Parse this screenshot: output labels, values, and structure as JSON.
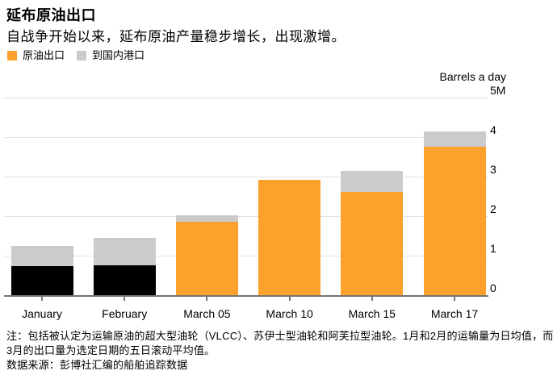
{
  "header": {
    "title": "延布原油出口",
    "subtitle": "自战争开始以来，延布原油产量稳步增长，出现激增。"
  },
  "legend": {
    "items": [
      {
        "label": "原油出口",
        "color_key": "orange"
      },
      {
        "label": "到国内港口",
        "color_key": "gray"
      }
    ]
  },
  "colors": {
    "orange": "#FBA12C",
    "gray": "#CBCBCB",
    "black": "#000000"
  },
  "chart_data": {
    "type": "bar",
    "stacked": true,
    "title": "延布原油出口",
    "unit_label": "Barrels a day",
    "ylabel": "",
    "xlabel": "",
    "ylim": [
      0,
      5
    ],
    "grid": "horizontal",
    "legend_position": "top-left",
    "y_ticks": [
      {
        "value": 5,
        "label": "5M"
      },
      {
        "value": 4,
        "label": "4"
      },
      {
        "value": 3,
        "label": "3"
      },
      {
        "value": 2,
        "label": "2"
      },
      {
        "value": 1,
        "label": "1"
      },
      {
        "value": 0,
        "label": "0"
      }
    ],
    "categories": [
      "January",
      "February",
      "March 05",
      "March 10",
      "March 15",
      "March 17"
    ],
    "series": [
      {
        "name": "原油出口",
        "values": [
          0.76,
          0.78,
          1.87,
          2.93,
          2.63,
          3.78
        ],
        "color_keys": [
          "black",
          "black",
          "orange",
          "orange",
          "orange",
          "orange"
        ]
      },
      {
        "name": "到国内港口",
        "values": [
          0.52,
          0.7,
          0.16,
          0,
          0.53,
          0.39
        ],
        "color_keys": [
          "gray",
          "gray",
          "gray",
          "gray",
          "gray",
          "gray"
        ]
      }
    ]
  },
  "footer": {
    "note_line1": "注：包括被认定为运输原油的超大型油轮（VLCC）、苏伊士型油轮和阿芙拉型油轮。1月和2月的运输量为日均值，而",
    "note_line2": "3月的出口量为选定日期的五日滚动平均值。",
    "source": "数据来源：彭博社汇编的船舶追踪数据"
  }
}
